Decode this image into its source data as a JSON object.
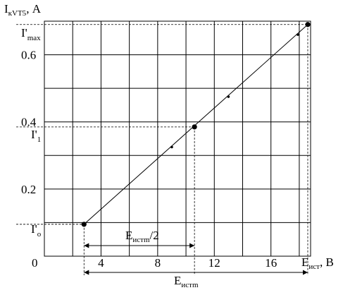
{
  "chart_data": {
    "type": "line",
    "y_label_main": "I",
    "y_label_sub": "кVT5",
    "y_label_unit": ", А",
    "x_label_main": "E",
    "x_label_sub": "ист",
    "x_label_unit": ", В",
    "origin_label": "0",
    "x_ticks": [
      {
        "value": 4,
        "label": "4"
      },
      {
        "value": 8,
        "label": "8"
      },
      {
        "value": 12,
        "label": "12"
      },
      {
        "value": 16,
        "label": "16"
      }
    ],
    "y_ticks": [
      {
        "value": 0.2,
        "label": "0.2"
      },
      {
        "value": 0.4,
        "label": "0.4"
      },
      {
        "value": 0.6,
        "label": "0.6"
      }
    ],
    "xlim": [
      0,
      18.8
    ],
    "ylim": [
      0,
      0.7
    ],
    "grid": true,
    "line": {
      "x": [
        2.8,
        18.6
      ],
      "y": [
        0.095,
        0.69
      ]
    },
    "points": [
      {
        "x": 2.8,
        "y": 0.095,
        "kind": "marked"
      },
      {
        "x": 9.0,
        "y": 0.325,
        "kind": "small"
      },
      {
        "x": 10.6,
        "y": 0.385,
        "kind": "marked"
      },
      {
        "x": 13.0,
        "y": 0.475,
        "kind": "small"
      },
      {
        "x": 17.9,
        "y": 0.66,
        "kind": "small"
      },
      {
        "x": 18.6,
        "y": 0.69,
        "kind": "marked"
      }
    ],
    "annotations": {
      "i0": {
        "main": "I'",
        "sub": "о"
      },
      "i1": {
        "main": "I'",
        "sub": "1"
      },
      "imax": {
        "main": "I'",
        "sub": "max"
      },
      "half_span": {
        "main": "E",
        "sub": "истm",
        "suffix": "/2"
      },
      "full_span": {
        "main": "E",
        "sub": "истm"
      }
    }
  }
}
